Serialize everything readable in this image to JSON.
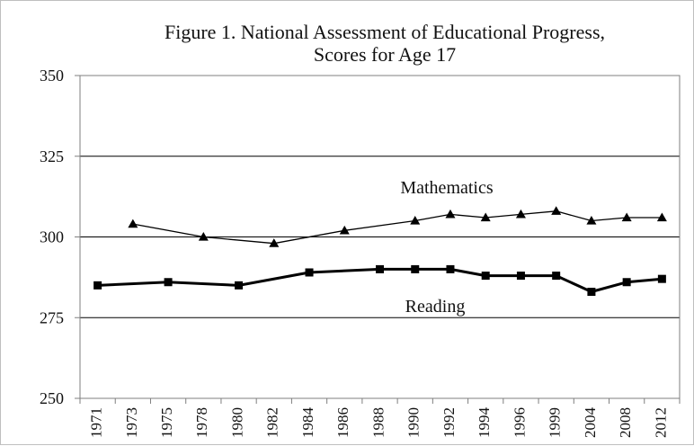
{
  "chart_data": {
    "type": "line",
    "title": "Figure 1. National Assessment of Educational Progress,",
    "subtitle": "Scores for Age 17",
    "ylim": [
      250,
      350
    ],
    "yticks": [
      "250",
      "275",
      "300",
      "325",
      "350"
    ],
    "grid": "horizontal",
    "categories": [
      "1971",
      "1973",
      "1975",
      "1978",
      "1980",
      "1982",
      "1984",
      "1986",
      "1988",
      "1990",
      "1992",
      "1994",
      "1996",
      "1999",
      "2004",
      "2008",
      "2012"
    ],
    "series": [
      {
        "name": "Mathematics",
        "marker": "triangle",
        "line_weight": "thin",
        "values": [
          null,
          304,
          null,
          300,
          null,
          298,
          null,
          302,
          null,
          305,
          307,
          306,
          307,
          308,
          305,
          306,
          306
        ]
      },
      {
        "name": "Reading",
        "marker": "square",
        "line_weight": "bold",
        "values": [
          285,
          null,
          286,
          null,
          285,
          null,
          289,
          null,
          290,
          290,
          290,
          288,
          288,
          288,
          283,
          286,
          287
        ]
      }
    ],
    "colors": {
      "line": "#000000",
      "grid": "#000000",
      "axis": "#7f7f7f"
    }
  }
}
